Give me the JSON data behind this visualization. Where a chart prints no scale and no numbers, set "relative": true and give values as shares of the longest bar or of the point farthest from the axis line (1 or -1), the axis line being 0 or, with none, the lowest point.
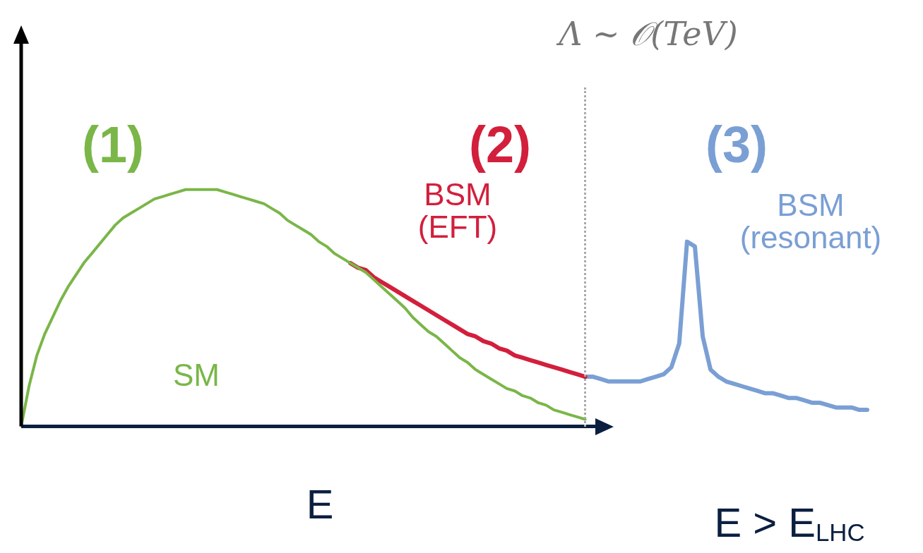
{
  "chart_data": {
    "type": "line",
    "relative": true,
    "xlabel": "E",
    "grid": false,
    "legend": false,
    "marker": "none",
    "line_style": "solid",
    "categories": [
      null,
      null,
      null,
      null,
      null,
      null,
      null,
      null,
      null,
      null,
      null,
      null,
      null,
      null,
      null,
      null,
      null,
      null,
      null,
      null,
      null,
      null,
      null,
      null,
      null,
      null,
      null,
      null,
      null,
      null,
      null,
      null,
      null,
      null,
      null,
      null,
      null,
      null,
      null,
      null,
      null,
      null,
      null,
      null,
      null,
      null,
      null,
      null,
      null,
      null,
      null,
      null,
      null,
      null,
      null,
      null,
      null,
      null,
      null,
      null,
      null,
      null,
      null,
      null,
      null,
      null,
      null,
      null,
      null,
      null,
      null,
      null,
      null,
      null,
      null,
      null,
      null,
      null,
      null,
      null,
      null,
      null,
      null,
      null,
      null,
      null,
      null,
      null,
      null,
      null,
      null,
      null,
      null,
      null,
      null,
      null,
      null,
      null,
      null,
      null,
      null,
      null,
      null,
      null,
      null,
      null,
      null,
      null,
      null
    ],
    "series": [
      {
        "name": "SM",
        "color": "#7ab648",
        "values": [
          0,
          0.17,
          0.3,
          0.39,
          0.46,
          0.53,
          0.59,
          0.64,
          0.69,
          0.73,
          0.77,
          0.81,
          0.85,
          0.88,
          0.9,
          0.92,
          0.94,
          0.96,
          0.97,
          0.98,
          0.99,
          1.0,
          1.0,
          1.0,
          1.0,
          1.0,
          0.99,
          0.98,
          0.97,
          0.96,
          0.95,
          0.94,
          0.92,
          0.9,
          0.87,
          0.85,
          0.83,
          0.81,
          0.78,
          0.76,
          0.73,
          0.71,
          0.69,
          0.67,
          0.65,
          0.62,
          0.59,
          0.56,
          0.53,
          0.5,
          0.46,
          0.43,
          0.4,
          0.38,
          0.35,
          0.32,
          0.29,
          0.27,
          0.24,
          0.22,
          0.2,
          0.18,
          0.16,
          0.15,
          0.13,
          0.12,
          0.1,
          0.09,
          0.07,
          0.06,
          0.05,
          0.04,
          0.03,
          null,
          null,
          null,
          null,
          null,
          null,
          null,
          null,
          null,
          null,
          null,
          null,
          null,
          null,
          null,
          null,
          null,
          null,
          null,
          null,
          null,
          null,
          null,
          null,
          null,
          null,
          null,
          null,
          null,
          null,
          null,
          null,
          null,
          null,
          null,
          null
        ]
      },
      {
        "name": "BSM (EFT)",
        "color": "#d21f3c",
        "values": [
          null,
          null,
          null,
          null,
          null,
          null,
          null,
          null,
          null,
          null,
          null,
          null,
          null,
          null,
          null,
          null,
          null,
          null,
          null,
          null,
          null,
          null,
          null,
          null,
          null,
          null,
          null,
          null,
          null,
          null,
          null,
          null,
          null,
          null,
          null,
          null,
          null,
          null,
          null,
          null,
          null,
          null,
          0.69,
          0.67,
          0.66,
          0.63,
          0.61,
          0.59,
          0.57,
          0.55,
          0.53,
          0.51,
          0.49,
          0.47,
          0.45,
          0.43,
          0.41,
          0.39,
          0.38,
          0.36,
          0.35,
          0.33,
          0.32,
          0.3,
          0.29,
          0.28,
          0.27,
          0.26,
          0.25,
          0.24,
          0.23,
          0.22,
          0.21,
          null,
          null,
          null,
          null,
          null,
          null,
          null,
          null,
          null,
          null,
          null,
          null,
          null,
          null,
          null,
          null,
          null,
          null,
          null,
          null,
          null,
          null,
          null,
          null,
          null,
          null,
          null,
          null,
          null,
          null,
          null,
          null,
          null,
          null,
          null,
          null
        ]
      },
      {
        "name": "BSM (resonant)",
        "color": "#7a9fd4",
        "values": [
          null,
          null,
          null,
          null,
          null,
          null,
          null,
          null,
          null,
          null,
          null,
          null,
          null,
          null,
          null,
          null,
          null,
          null,
          null,
          null,
          null,
          null,
          null,
          null,
          null,
          null,
          null,
          null,
          null,
          null,
          null,
          null,
          null,
          null,
          null,
          null,
          null,
          null,
          null,
          null,
          null,
          null,
          null,
          null,
          null,
          null,
          null,
          null,
          null,
          null,
          null,
          null,
          null,
          null,
          null,
          null,
          null,
          null,
          null,
          null,
          null,
          null,
          null,
          null,
          null,
          null,
          null,
          null,
          null,
          null,
          null,
          null,
          0.21,
          0.21,
          0.2,
          0.19,
          0.19,
          0.19,
          0.19,
          0.19,
          0.2,
          0.21,
          0.22,
          0.25,
          0.35,
          0.78,
          0.76,
          0.38,
          0.24,
          0.21,
          0.19,
          0.18,
          0.17,
          0.16,
          0.15,
          0.14,
          0.14,
          0.13,
          0.12,
          0.12,
          0.11,
          0.1,
          0.1,
          0.09,
          0.08,
          0.08,
          0.08,
          0.07,
          0.07
        ]
      }
    ],
    "annotations": [
      "Λ ~ 𝒪(TeV)",
      "(1)",
      "(2)",
      "(3)",
      "E > E$_{LHC}$"
    ]
  }
}
